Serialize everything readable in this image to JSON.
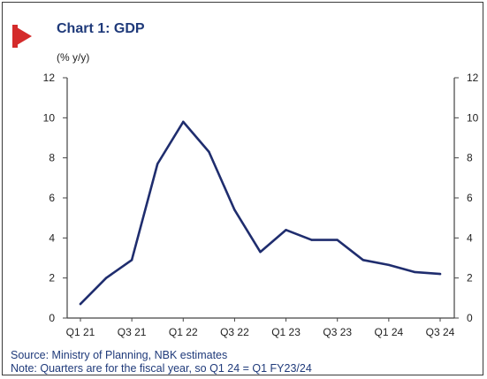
{
  "header": {
    "title": "Chart 1: GDP",
    "unit": "(% y/y)"
  },
  "footer": {
    "source": "Source: Ministry of Planning, NBK estimates",
    "note": "Note: Quarters are for the fiscal year, so Q1 24 = Q1 FY23/24"
  },
  "colors": {
    "line": "#1f2d6e",
    "accent": "#d42b2b",
    "title": "#1f3a7a"
  },
  "chart_data": {
    "type": "line",
    "title": "Chart 1: GDP",
    "ylabel": "(% y/y)",
    "xlabel": "",
    "ylim": [
      0,
      12
    ],
    "yticks": [
      "0",
      "2",
      "4",
      "6",
      "8",
      "10",
      "12"
    ],
    "y2ticks": [
      "0",
      "2",
      "4",
      "6",
      "8",
      "10",
      "12"
    ],
    "x_labels": [
      "Q1 21",
      "Q3 21",
      "Q1 22",
      "Q3 22",
      "Q1 23",
      "Q3 23",
      "Q1 24",
      "Q3 24"
    ],
    "grid": false,
    "series": [
      {
        "x": [
          "Q1 21",
          "Q2 21",
          "Q3 21",
          "Q4 21",
          "Q1 22",
          "Q2 22",
          "Q3 22",
          "Q4 22",
          "Q1 23",
          "Q2 23",
          "Q3 23",
          "Q4 23",
          "Q1 24",
          "Q2 24",
          "Q3 24"
        ],
        "values": [
          0.7,
          2.0,
          2.9,
          7.7,
          9.8,
          8.3,
          5.4,
          3.3,
          4.4,
          3.9,
          3.9,
          2.9,
          2.65,
          2.3,
          2.2
        ]
      }
    ]
  }
}
